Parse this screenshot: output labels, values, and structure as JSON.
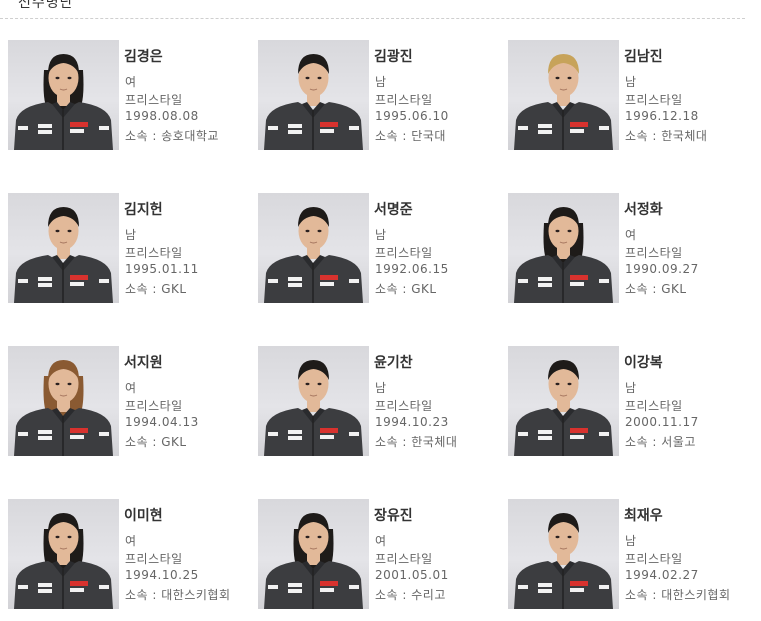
{
  "section": {
    "title": "선수명단"
  },
  "players": [
    {
      "name": "김경은",
      "gender": "여",
      "discipline": "프리스타일",
      "birth": "1998.08.08",
      "affiliation": "소속 : 송호대학교",
      "hair": "long"
    },
    {
      "name": "김광진",
      "gender": "남",
      "discipline": "프리스타일",
      "birth": "1995.06.10",
      "affiliation": "소속 : 단국대",
      "hair": "short"
    },
    {
      "name": "김남진",
      "gender": "남",
      "discipline": "프리스타일",
      "birth": "1996.12.18",
      "affiliation": "소속 : 한국체대",
      "hair": "blond"
    },
    {
      "name": "김지헌",
      "gender": "남",
      "discipline": "프리스타일",
      "birth": "1995.01.11",
      "affiliation": "소속 : GKL",
      "hair": "short"
    },
    {
      "name": "서명준",
      "gender": "남",
      "discipline": "프리스타일",
      "birth": "1992.06.15",
      "affiliation": "소속 : GKL",
      "hair": "short"
    },
    {
      "name": "서정화",
      "gender": "여",
      "discipline": "프리스타일",
      "birth": "1990.09.27",
      "affiliation": "소속 : GKL",
      "hair": "long"
    },
    {
      "name": "서지원",
      "gender": "여",
      "discipline": "프리스타일",
      "birth": "1994.04.13",
      "affiliation": "소속 : GKL",
      "hair": "reddish"
    },
    {
      "name": "윤기찬",
      "gender": "남",
      "discipline": "프리스타일",
      "birth": "1994.10.23",
      "affiliation": "소속 : 한국체대",
      "hair": "short"
    },
    {
      "name": "이강복",
      "gender": "남",
      "discipline": "프리스타일",
      "birth": "2000.11.17",
      "affiliation": "소속 : 서울고",
      "hair": "medium"
    },
    {
      "name": "이미현",
      "gender": "여",
      "discipline": "프리스타일",
      "birth": "1994.10.25",
      "affiliation": "소속 : 대한스키협회",
      "hair": "long"
    },
    {
      "name": "장유진",
      "gender": "여",
      "discipline": "프리스타일",
      "birth": "2001.05.01",
      "affiliation": "소속 : 수리고",
      "hair": "long"
    },
    {
      "name": "최재우",
      "gender": "남",
      "discipline": "프리스타일",
      "birth": "1994.02.27",
      "affiliation": "소속 : 대한스키협회",
      "hair": "short"
    }
  ],
  "colors": {
    "jacket": "#3c3d40",
    "skin": "#e2b999",
    "hair_dark": "#1e1b19",
    "hair_blond": "#c7a35a",
    "hair_reddish": "#8a5a32",
    "patch_red": "#d8322e",
    "patch_white": "#f2f2f2"
  }
}
